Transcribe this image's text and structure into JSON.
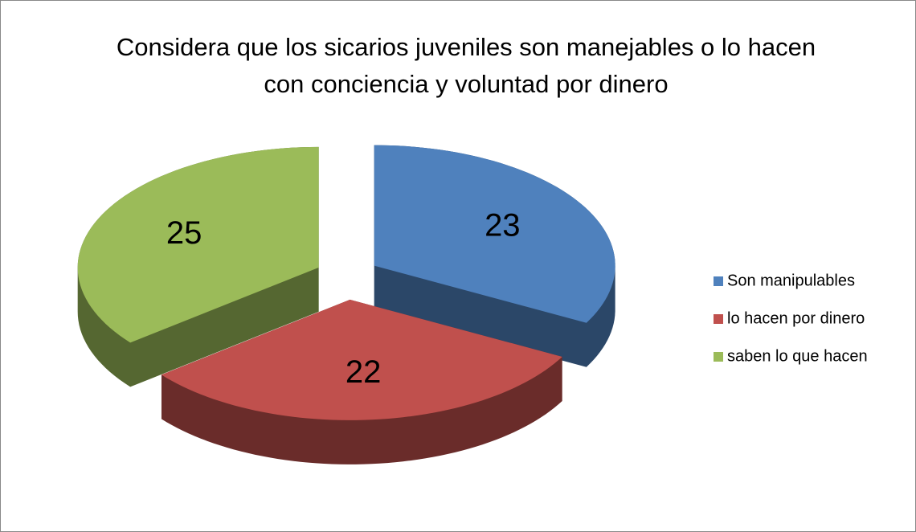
{
  "chart_data": {
    "type": "pie3d",
    "title": "Considera que los sicarios juveniles son manejables o lo hacen con conciencia y voluntad por dinero",
    "categories": [
      "Son manipulables",
      "lo hacen por dinero",
      "saben lo que hacen"
    ],
    "values": [
      23,
      22,
      25
    ],
    "colors": [
      "#4f81bd",
      "#c0504d",
      "#9bbb59"
    ],
    "legend": "right"
  }
}
